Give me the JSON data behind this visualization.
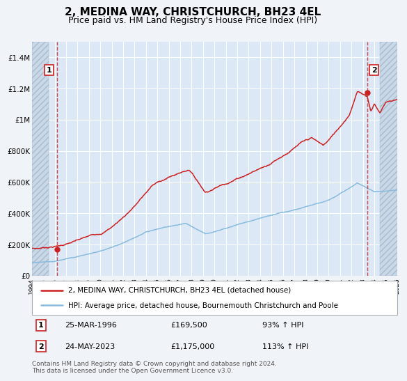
{
  "title": "2, MEDINA WAY, CHRISTCHURCH, BH23 4EL",
  "subtitle": "Price paid vs. HM Land Registry's House Price Index (HPI)",
  "title_fontsize": 11,
  "subtitle_fontsize": 9,
  "bg_color": "#f0f4f8",
  "plot_bg_color": "#dce8f5",
  "grid_color": "#ffffff",
  "hatch_color": "#c8d8e8",
  "red_color": "#cc2222",
  "blue_color": "#88bbdd",
  "ylim": [
    0,
    1500000
  ],
  "yticks": [
    0,
    200000,
    400000,
    600000,
    800000,
    1000000,
    1200000,
    1400000
  ],
  "ytick_labels": [
    "£0",
    "£200K",
    "£400K",
    "£600K",
    "£800K",
    "£1M",
    "£1.2M",
    "£1.4M"
  ],
  "xmin_year": 1994.0,
  "xmax_year": 2026.0,
  "hatch_left_end": 1995.5,
  "hatch_right_start": 2024.5,
  "xticks_years": [
    1994,
    1995,
    1996,
    1997,
    1998,
    1999,
    2000,
    2001,
    2002,
    2003,
    2004,
    2005,
    2006,
    2007,
    2008,
    2009,
    2010,
    2011,
    2012,
    2013,
    2014,
    2015,
    2016,
    2017,
    2018,
    2019,
    2020,
    2021,
    2022,
    2023,
    2024,
    2025,
    2026
  ],
  "legend_label_red": "2, MEDINA WAY, CHRISTCHURCH, BH23 4EL (detached house)",
  "legend_label_blue": "HPI: Average price, detached house, Bournemouth Christchurch and Poole",
  "sale1_year": 1996.22,
  "sale1_price": 169500,
  "sale1_label": "1",
  "sale1_date": "25-MAR-1996",
  "sale1_price_str": "£169,500",
  "sale1_pct": "93% ↑ HPI",
  "sale2_year": 2023.38,
  "sale2_price": 1175000,
  "sale2_label": "2",
  "sale2_date": "24-MAY-2023",
  "sale2_price_str": "£1,175,000",
  "sale2_pct": "113% ↑ HPI",
  "footer": "Contains HM Land Registry data © Crown copyright and database right 2024.\nThis data is licensed under the Open Government Licence v3.0.",
  "footer_fontsize": 6.5
}
